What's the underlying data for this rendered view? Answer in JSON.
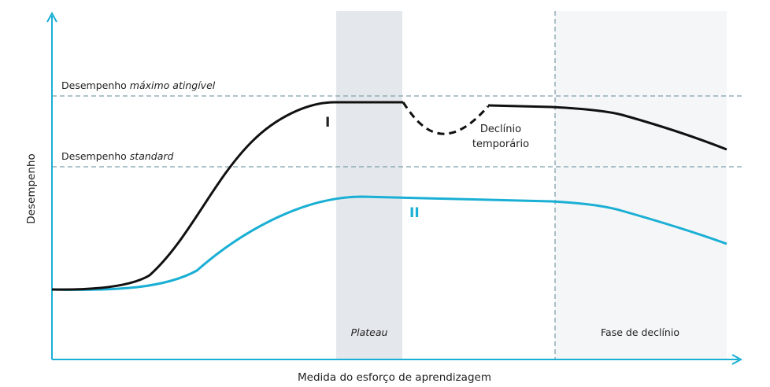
{
  "y_axis_label": "Desempenho",
  "x_axis_label": "Medida do esforço de aprendizagem",
  "max_line_label_prefix": "Desempenho ",
  "max_line_label_italic": "máximo atingível",
  "standard_line_label_prefix": "Desempenho ",
  "standard_line_label_italic": "standard",
  "plateau_label": "Plateau",
  "decline_phase_label": "Fase de declínio",
  "curve_one_label": "I",
  "curve_two_label": "II",
  "temporary_decline_line1": "Declínio",
  "temporary_decline_line2": "temporário",
  "colors": {
    "axis": "#1aafd4",
    "curve_one": "#111111",
    "curve_two": "#1aafd4",
    "plateau_band": "#e4e8ec",
    "decline_band": "#f5f6f8",
    "reference_lines": "#7fa0aa"
  }
}
